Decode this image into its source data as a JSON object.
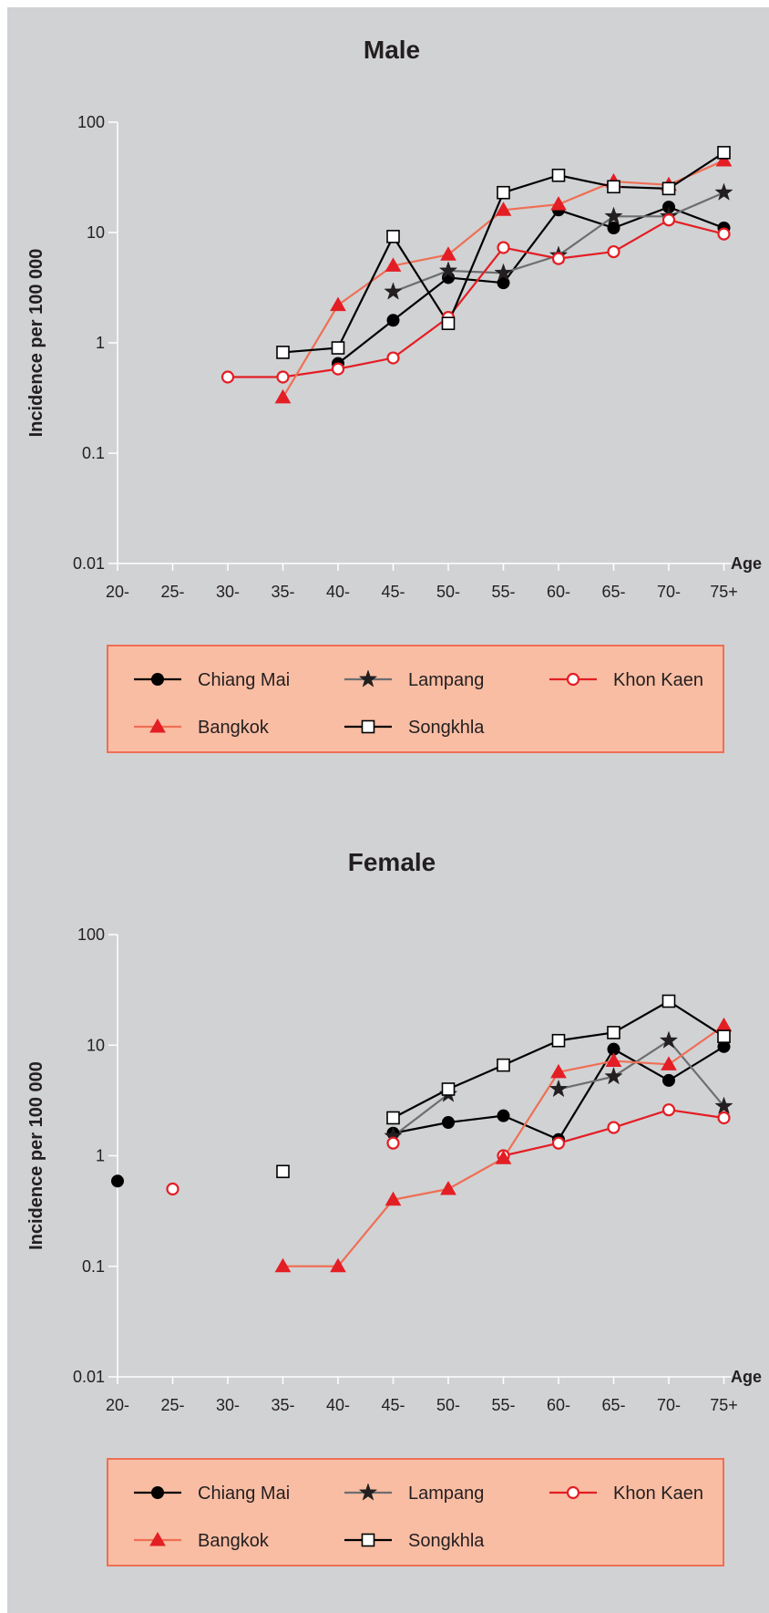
{
  "chart_data": [
    {
      "type": "line",
      "title": "Male",
      "ylabel": "Incidence per 100 000",
      "xlabel": "Age",
      "yscale": "log",
      "ylim": [
        0.01,
        100
      ],
      "y_ticks": [
        "100",
        "10",
        "1",
        "0.1",
        "0.01"
      ],
      "categories": [
        "20-",
        "25-",
        "30-",
        "35-",
        "40-",
        "45-",
        "50-",
        "55-",
        "60-",
        "65-",
        "70-",
        "75+"
      ],
      "grid": false,
      "legend_position": "bottom",
      "series": [
        {
          "name": "Chiang Mai",
          "color": "#000000",
          "marker": "filled-circle",
          "values": [
            null,
            null,
            null,
            null,
            0.65,
            1.6,
            3.9,
            3.5,
            16,
            11,
            17,
            11
          ]
        },
        {
          "name": "Lampang",
          "color": "#6d6e70",
          "marker": "star",
          "values": [
            null,
            null,
            null,
            null,
            null,
            2.9,
            4.5,
            4.3,
            6.2,
            14,
            14,
            23
          ]
        },
        {
          "name": "Khon Kaen",
          "color": "#e31e24",
          "marker": "open-circle",
          "values": [
            null,
            null,
            0.49,
            0.49,
            0.58,
            0.73,
            1.7,
            7.3,
            5.8,
            6.7,
            13,
            9.7
          ]
        },
        {
          "name": "Bangkok",
          "color": "#ef6f55",
          "marker": "filled-triangle",
          "values": [
            null,
            null,
            null,
            0.32,
            2.2,
            5.0,
            6.3,
            16,
            18,
            29,
            27,
            45
          ]
        },
        {
          "name": "Songkhla",
          "color": "#000000",
          "marker": "open-square",
          "values": [
            null,
            null,
            null,
            0.82,
            0.9,
            9.2,
            1.5,
            23,
            33,
            26,
            25,
            53
          ]
        }
      ]
    },
    {
      "type": "line",
      "title": "Female",
      "ylabel": "Incidence per 100 000",
      "xlabel": "Age",
      "yscale": "log",
      "ylim": [
        0.01,
        100
      ],
      "y_ticks": [
        "100",
        "10",
        "1",
        "0.1",
        "0.01"
      ],
      "categories": [
        "20-",
        "25-",
        "30-",
        "35-",
        "40-",
        "45-",
        "50-",
        "55-",
        "60-",
        "65-",
        "70-",
        "75+"
      ],
      "grid": false,
      "legend_position": "bottom",
      "series": [
        {
          "name": "Chiang Mai",
          "color": "#000000",
          "marker": "filled-circle",
          "values": [
            0.59,
            null,
            null,
            null,
            null,
            1.6,
            2.0,
            2.3,
            1.4,
            9.2,
            4.8,
            9.7
          ]
        },
        {
          "name": "Lampang",
          "color": "#6d6e70",
          "marker": "star",
          "values": [
            null,
            null,
            null,
            null,
            null,
            1.5,
            3.6,
            null,
            4.0,
            5.2,
            11,
            2.8
          ]
        },
        {
          "name": "Khon Kaen",
          "color": "#e31e24",
          "marker": "open-circle",
          "values": [
            null,
            0.5,
            null,
            null,
            null,
            1.3,
            null,
            1.0,
            1.3,
            1.8,
            2.6,
            2.2
          ]
        },
        {
          "name": "Bangkok",
          "color": "#ef6f55",
          "marker": "filled-triangle",
          "values": [
            null,
            null,
            null,
            0.1,
            0.1,
            0.4,
            0.5,
            0.95,
            5.7,
            7.2,
            6.7,
            15
          ]
        },
        {
          "name": "Songkhla",
          "color": "#000000",
          "marker": "open-square",
          "values": [
            null,
            null,
            null,
            0.72,
            null,
            2.2,
            4.0,
            6.6,
            11,
            13,
            25,
            12
          ]
        }
      ]
    }
  ],
  "legend": {
    "background": "#f9bda3",
    "border": "#ef6f55"
  }
}
